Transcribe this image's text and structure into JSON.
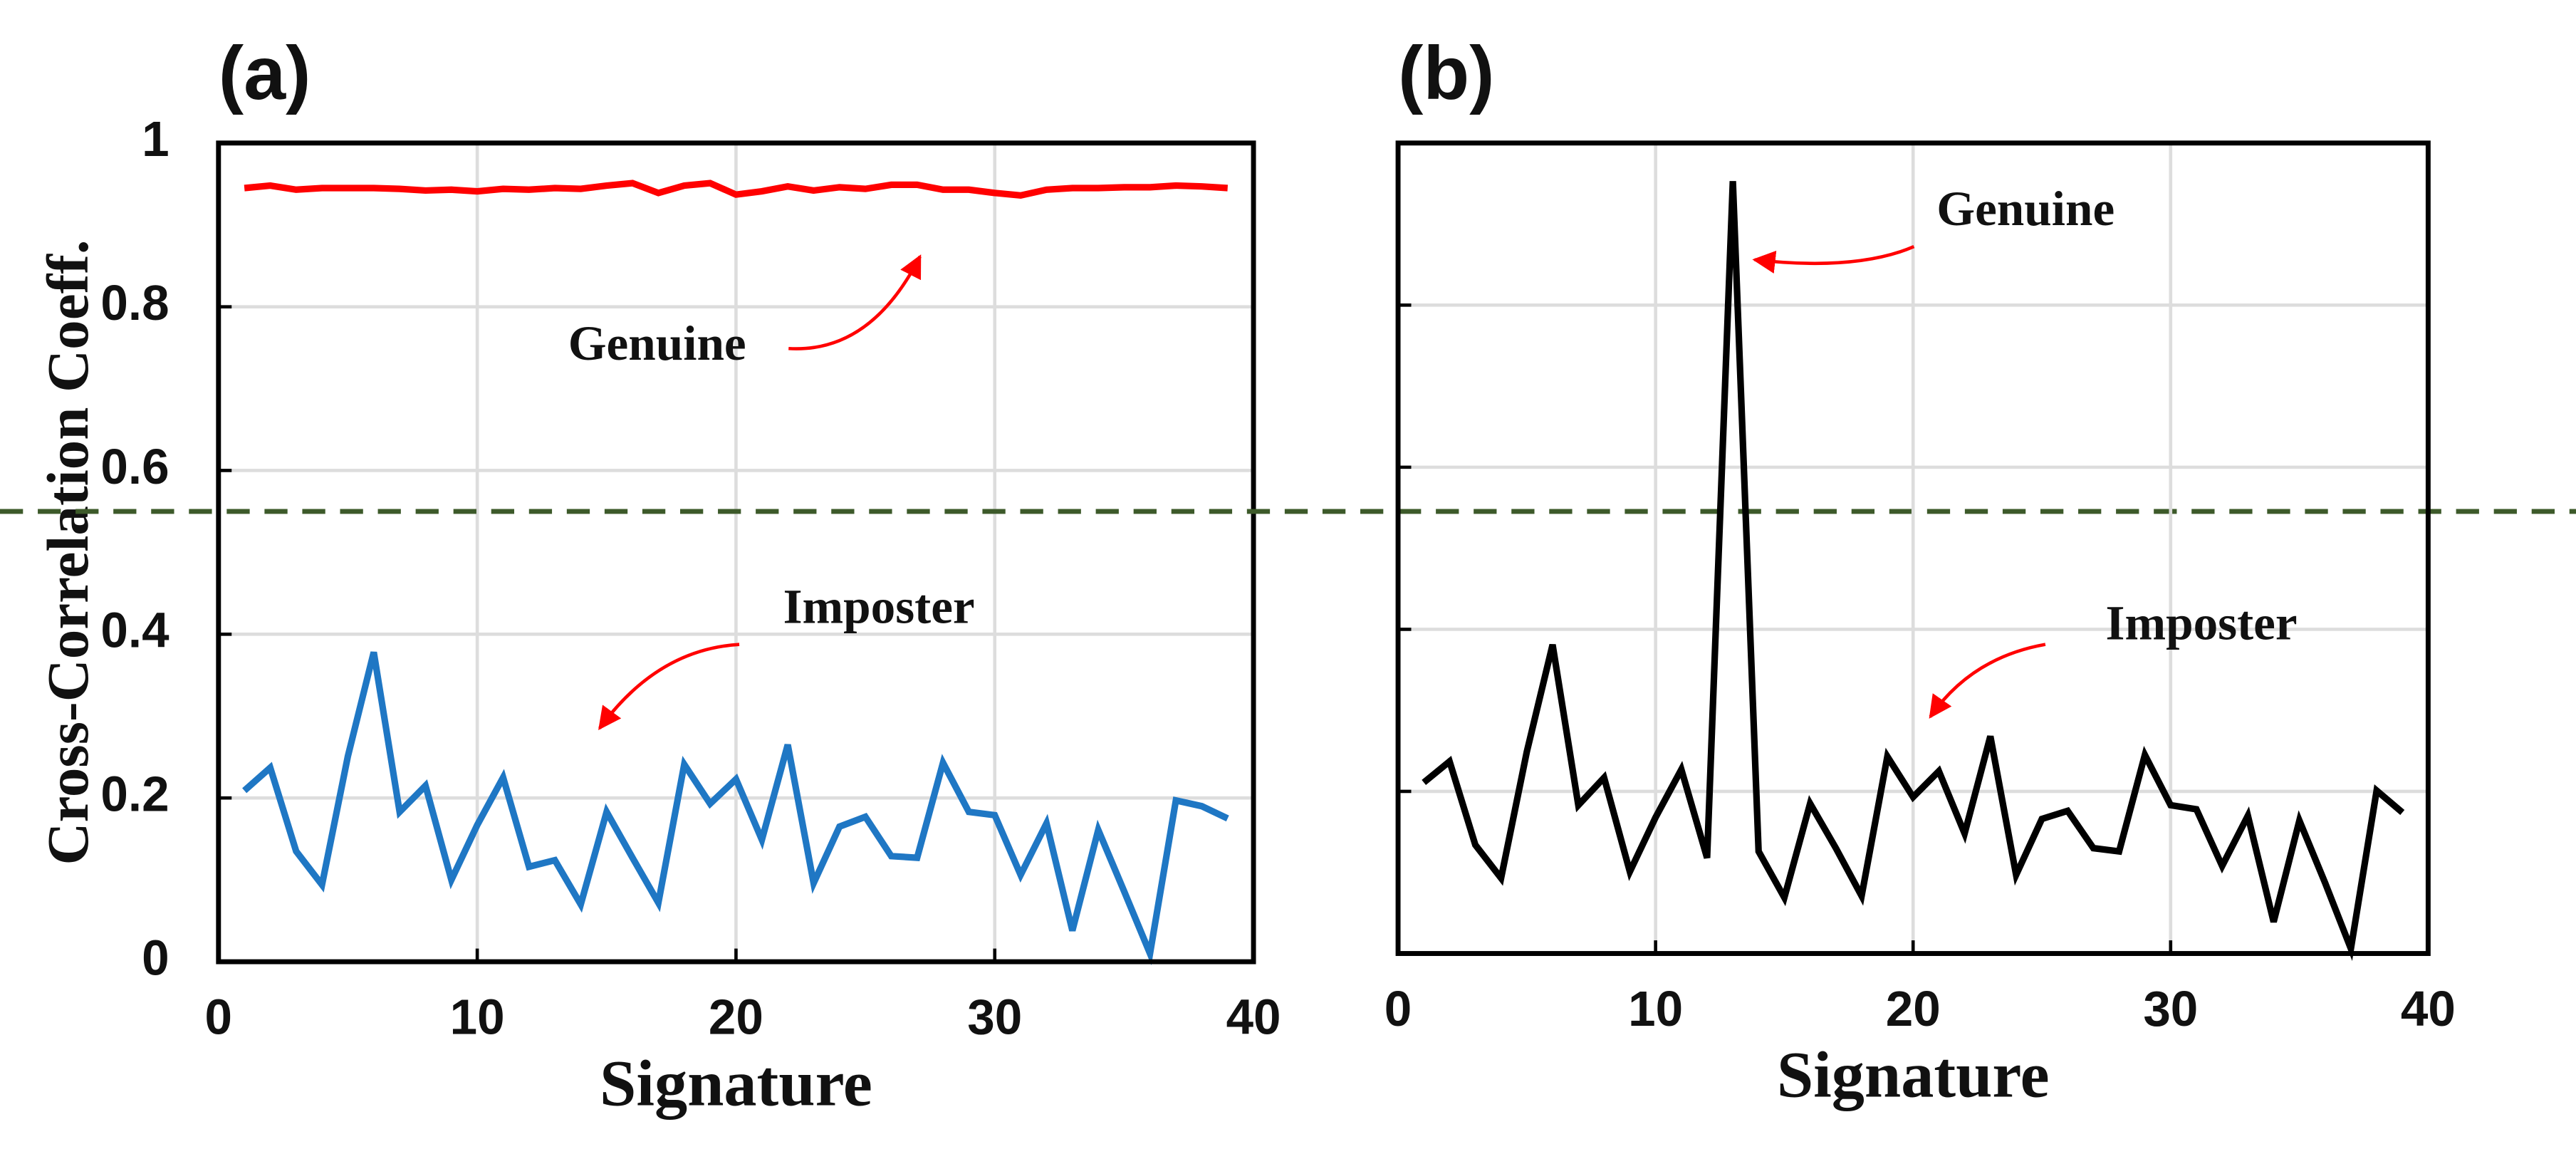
{
  "chart_data": [
    {
      "type": "line",
      "title": "(a)",
      "xlabel": "Signature",
      "ylabel": "Cross-Correlation Coeff.",
      "x": [
        1,
        2,
        3,
        4,
        5,
        6,
        7,
        8,
        9,
        10,
        11,
        12,
        13,
        14,
        15,
        16,
        17,
        18,
        19,
        20,
        21,
        22,
        23,
        24,
        25,
        26,
        27,
        28,
        29,
        30,
        31,
        32,
        33,
        34,
        35,
        36,
        37,
        38,
        39
      ],
      "series": [
        {
          "name": "Genuine",
          "color": "#ff0000",
          "values": [
            0.945,
            0.948,
            0.943,
            0.945,
            0.945,
            0.945,
            0.944,
            0.942,
            0.943,
            0.941,
            0.944,
            0.943,
            0.945,
            0.944,
            0.948,
            0.951,
            0.939,
            0.948,
            0.951,
            0.937,
            0.941,
            0.947,
            0.942,
            0.946,
            0.944,
            0.949,
            0.949,
            0.943,
            0.943,
            0.939,
            0.936,
            0.943,
            0.945,
            0.945,
            0.946,
            0.946,
            0.948,
            0.947,
            0.945
          ]
        },
        {
          "name": "Imposter",
          "color": "#1f77c4",
          "values": [
            0.209,
            0.237,
            0.135,
            0.094,
            0.251,
            0.378,
            0.183,
            0.215,
            0.1,
            0.167,
            0.225,
            0.116,
            0.124,
            0.07,
            0.183,
            0.127,
            0.072,
            0.241,
            0.193,
            0.223,
            0.149,
            0.265,
            0.096,
            0.165,
            0.177,
            0.129,
            0.127,
            0.243,
            0.183,
            0.179,
            0.106,
            0.169,
            0.038,
            0.161,
            0.086,
            0.01,
            0.197,
            0.19,
            0.175
          ]
        }
      ],
      "annotations": [
        "Genuine",
        "Imposter"
      ],
      "threshold": 0.55,
      "xlim": [
        0,
        40
      ],
      "xticks": [
        0,
        10,
        20,
        30,
        40
      ],
      "ylim": [
        0,
        1
      ],
      "yticks": [
        0,
        0.2,
        0.4,
        0.6,
        0.8,
        1
      ],
      "ytick_labels": true,
      "grid": true
    },
    {
      "type": "line",
      "title": "(b)",
      "xlabel": "Signature",
      "x": [
        1,
        2,
        3,
        4,
        5,
        6,
        7,
        8,
        9,
        10,
        11,
        12,
        13,
        14,
        15,
        16,
        17,
        18,
        19,
        20,
        21,
        22,
        23,
        24,
        25,
        26,
        27,
        28,
        29,
        30,
        31,
        32,
        33,
        34,
        35,
        36,
        37,
        38,
        39
      ],
      "series": [
        {
          "color": "#000000",
          "values": [
            0.211,
            0.237,
            0.134,
            0.093,
            0.249,
            0.381,
            0.183,
            0.217,
            0.101,
            0.168,
            0.227,
            0.118,
            0.953,
            0.126,
            0.069,
            0.185,
            0.13,
            0.071,
            0.243,
            0.193,
            0.225,
            0.148,
            0.268,
            0.097,
            0.166,
            0.176,
            0.13,
            0.126,
            0.245,
            0.183,
            0.178,
            0.108,
            0.17,
            0.039,
            0.164,
            0.087,
            0.006,
            0.201,
            0.174
          ]
        }
      ],
      "annotations": [
        "Genuine",
        "Imposter"
      ],
      "xlim": [
        0,
        40
      ],
      "xticks": [
        0,
        10,
        20,
        30,
        40
      ],
      "ylim": [
        0,
        1
      ],
      "yticks": [
        0,
        0.2,
        0.4,
        0.6,
        0.8,
        1
      ],
      "ytick_labels": false,
      "grid": true
    }
  ]
}
